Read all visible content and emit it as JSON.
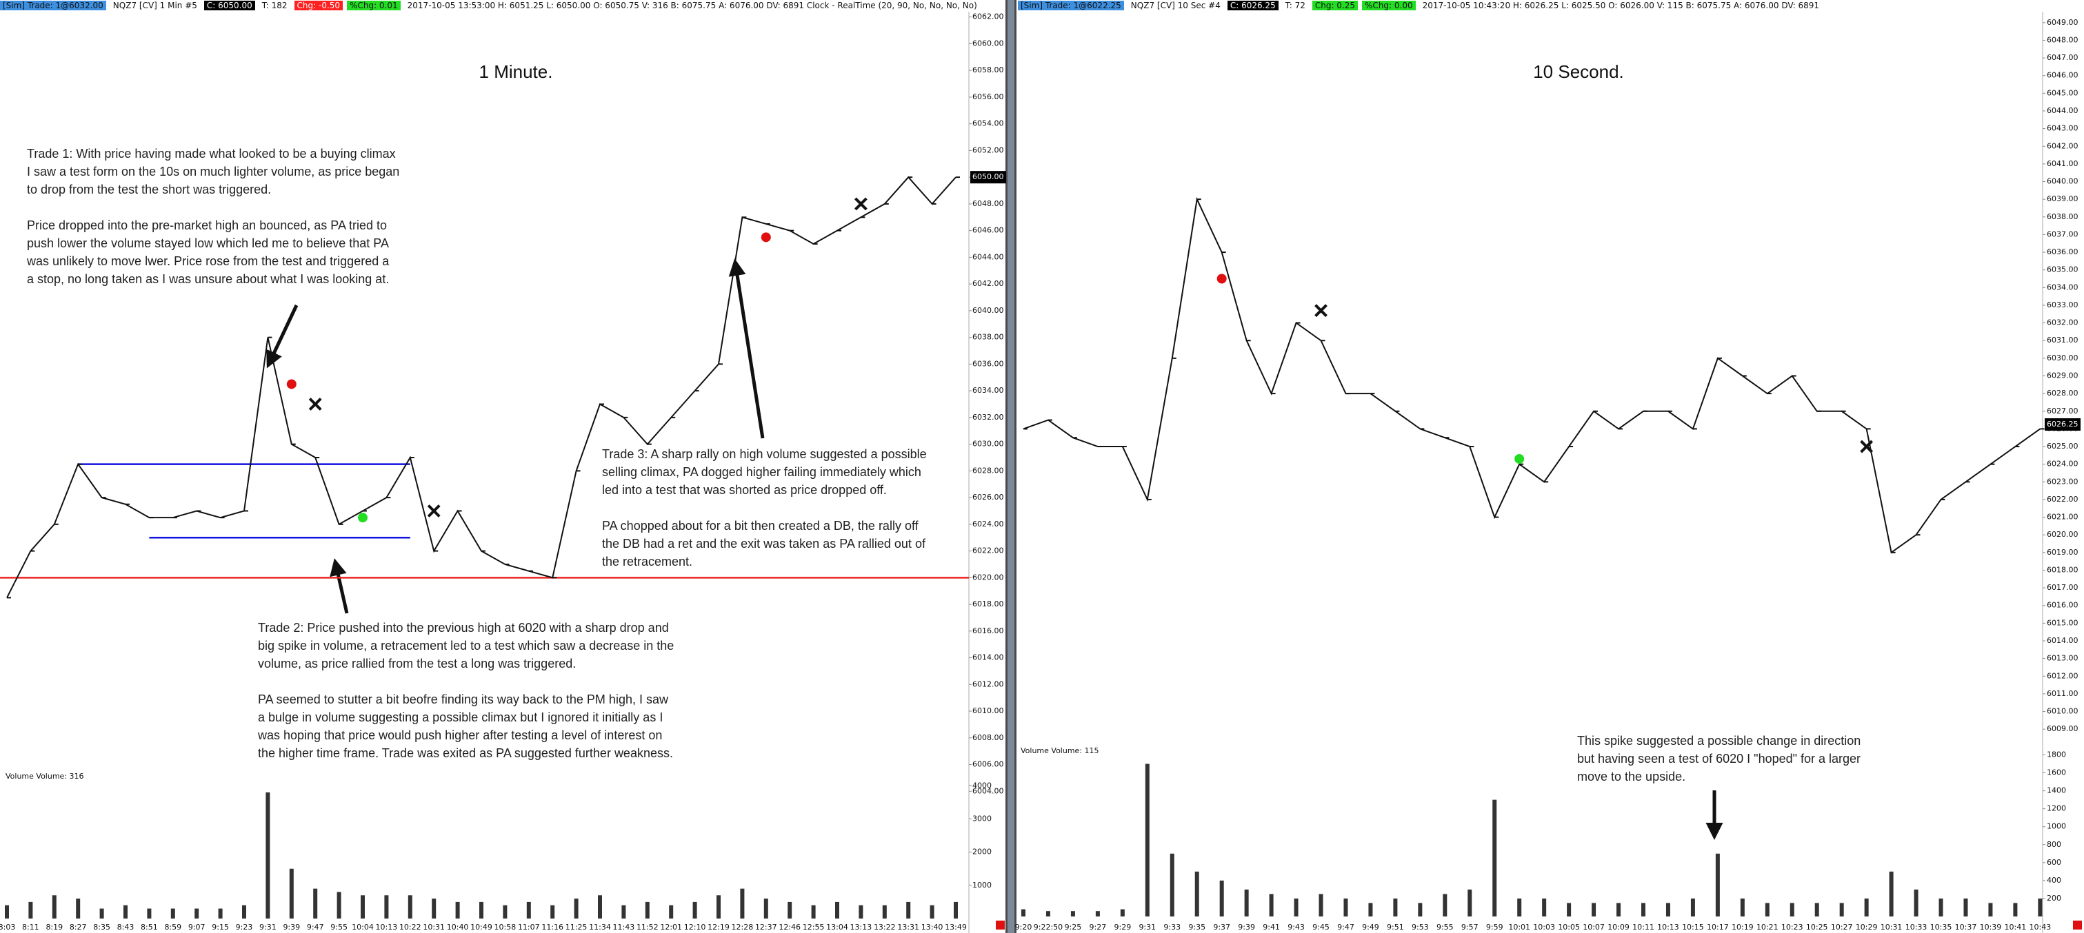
{
  "headers": [
    [
      {
        "text": "[Sim]  Trade: 1@6032.00",
        "bg": "#3d8fe0"
      },
      {
        "text": "NQZ7 [CV]  1 Min  #5"
      },
      {
        "text": "C: 6050.00",
        "bg": "#000000",
        "color": "#ffffff"
      },
      {
        "text": "T: 182"
      },
      {
        "text": "Chg: -0.50",
        "bg": "#ff2020",
        "color": "#ffffff"
      },
      {
        "text": "%Chg: 0.01",
        "bg": "#22dd22"
      },
      {
        "text": "2017-10-05 13:53:00  H: 6051.25  L: 6050.00  O: 6050.75  V: 316  B: 6075.75  A: 6076.00  DV: 6891  Clock - RealTime  (20, 90, No, No, No, No)"
      }
    ],
    [
      {
        "text": "[Sim]  Trade: 1@6022.25",
        "bg": "#3d8fe0"
      },
      {
        "text": "NQZ7 [CV]  10 Sec  #4"
      },
      {
        "text": "C: 6026.25",
        "bg": "#000000",
        "color": "#ffffff"
      },
      {
        "text": "T: 72"
      },
      {
        "text": "Chg: 0.25",
        "bg": "#22dd22"
      },
      {
        "text": "%Chg: 0.00",
        "bg": "#22dd22"
      },
      {
        "text": "2017-10-05 10:43:20  H: 6026.25  L: 6025.50  O: 6026.00  V: 115  B: 6075.75  A: 6076.00  DV: 6891"
      }
    ]
  ],
  "notes": [
    {
      "paragraphs": [
        [
          "Trade 1:  With price having made what looked to be a buying climax",
          "I saw a test form on the 10s on much lighter volume, as price began",
          "to drop from the test the short was triggered."
        ],
        [
          "Price dropped into the pre-market high an bounced, as PA tried to",
          "push lower the volume stayed low which led me to believe that PA",
          "was unlikely to move lwer.  Price rose from the test and triggered a",
          "a stop, no long taken as I was unsure about what I was looking at."
        ]
      ]
    },
    {
      "paragraphs": [
        [
          "Trade 3:  A sharp rally on high volume suggested a possible",
          "selling climax, PA dogged higher failing immediately which",
          "led into a test that was shorted as price dropped off."
        ],
        [
          "PA chopped about for a bit then created a DB, the rally off",
          "the DB had a ret and the exit was taken as PA rallied out of",
          "the retracement."
        ]
      ]
    },
    {
      "paragraphs": [
        [
          "Trade 2:  Price pushed into the previous high at 6020 with a sharp drop and",
          "big spike in volume, a retracement led to a test which saw a decrease in the",
          "volume, as price rallied from the test a long was triggered."
        ],
        [
          "PA seemed to stutter a bit beofre finding its way back to the PM high, I saw",
          "a bulge in volume suggesting a possible climax but I ignored it initially as I",
          "was hoping that price would push higher after testing a level of interest on",
          "the higher time frame.  Trade was exited as PA suggested further weakness."
        ]
      ]
    },
    {
      "paragraphs": [
        [
          "This spike suggested a possible change in direction",
          "but having seen a test of 6020 I \"hoped\" for a larger",
          "move to the upside."
        ]
      ]
    }
  ],
  "chart_data": [
    {
      "type": "line",
      "title": "1 Minute.",
      "color": "#111111",
      "values": [
        6018.5,
        6022,
        6024,
        6028.5,
        6026,
        6025.5,
        6024.5,
        6024.5,
        6025,
        6024.5,
        6025,
        6038,
        6030,
        6029,
        6024,
        6025,
        6026,
        6029,
        6022,
        6025,
        6022,
        6021,
        6020.5,
        6020,
        6028,
        6033,
        6032,
        6030,
        6032,
        6034,
        6036,
        6047,
        6046.5,
        6046,
        6045,
        6046,
        6047,
        6048,
        6050,
        6048,
        6050
      ],
      "ylim": [
        6003.5,
        6062.5
      ],
      "yticks": [
        {
          "value": 6004,
          "label": "6004.00"
        },
        {
          "value": 6006,
          "label": "6006.00"
        },
        {
          "value": 6008,
          "label": "6008.00"
        },
        {
          "value": 6010,
          "label": "6010.00"
        },
        {
          "value": 6012,
          "label": "6012.00"
        },
        {
          "value": 6014,
          "label": "6014.00"
        },
        {
          "value": 6016,
          "label": "6016.00"
        },
        {
          "value": 6018,
          "label": "6018.00"
        },
        {
          "value": 6020,
          "label": "6020.00"
        },
        {
          "value": 6022,
          "label": "6022.00"
        },
        {
          "value": 6024,
          "label": "6024.00"
        },
        {
          "value": 6026,
          "label": "6026.00"
        },
        {
          "value": 6028,
          "label": "6028.00"
        },
        {
          "value": 6030,
          "label": "6030.00"
        },
        {
          "value": 6032,
          "label": "6032.00"
        },
        {
          "value": 6034,
          "label": "6034.00"
        },
        {
          "value": 6036,
          "label": "6036.00"
        },
        {
          "value": 6038,
          "label": "6038.00"
        },
        {
          "value": 6040,
          "label": "6040.00"
        },
        {
          "value": 6042,
          "label": "6042.00"
        },
        {
          "value": 6044,
          "label": "6044.00"
        },
        {
          "value": 6046,
          "label": "6046.00"
        },
        {
          "value": 6048,
          "label": "6048.00"
        },
        {
          "value": 6050,
          "label": "6050.00"
        },
        {
          "value": 6052,
          "label": "6052.00"
        },
        {
          "value": 6054,
          "label": "6054.00"
        },
        {
          "value": 6056,
          "label": "6056.00"
        },
        {
          "value": 6058,
          "label": "6058.00"
        },
        {
          "value": 6060,
          "label": "6060.00"
        },
        {
          "value": 6062,
          "label": "6062.00"
        }
      ],
      "last": {
        "value": 6050,
        "label": "6050.00"
      },
      "levels": [
        {
          "value": 6028.5,
          "color": "#1010e0",
          "span": [
            3,
            17
          ]
        },
        {
          "value": 6023,
          "color": "#1010e0",
          "span": [
            6,
            17
          ]
        },
        {
          "value": 6020,
          "color": "#ee2222"
        }
      ],
      "markers": [
        {
          "x": 12,
          "y": 6034.5,
          "shape": "dot",
          "color": "#e01010"
        },
        {
          "x": 13,
          "y": 6033,
          "shape": "cross",
          "color": "#111111"
        },
        {
          "x": 15,
          "y": 6024.5,
          "shape": "dot",
          "color": "#22dd22"
        },
        {
          "x": 18,
          "y": 6025,
          "shape": "cross",
          "color": "#111111"
        },
        {
          "x": 32,
          "y": 6045.5,
          "shape": "dot",
          "color": "#e01010"
        },
        {
          "x": 36,
          "y": 6048,
          "shape": "cross",
          "color": "#111111"
        }
      ]
    },
    {
      "type": "bar",
      "title": "Volume  Volume: 316",
      "color": "#333333",
      "categories": [
        "8:03",
        "8:11",
        "8:19",
        "8:27",
        "8:35",
        "8:43",
        "8:51",
        "8:59",
        "9:07",
        "9:15",
        "9:23",
        "9:31",
        "9:39",
        "9:47",
        "9:55",
        "10:04",
        "10:13",
        "10:22",
        "10:31",
        "10:40",
        "10:49",
        "10:58",
        "11:07",
        "11:16",
        "11:25",
        "11:34",
        "11:43",
        "11:52",
        "12:01",
        "12:10",
        "12:19",
        "12:28",
        "12:37",
        "12:46",
        "12:55",
        "13:04",
        "13:13",
        "13:22",
        "13:31",
        "13:40",
        "13:49"
      ],
      "values": [
        400,
        500,
        700,
        600,
        300,
        400,
        300,
        300,
        300,
        300,
        400,
        3800,
        1500,
        900,
        800,
        700,
        700,
        700,
        600,
        500,
        500,
        400,
        500,
        400,
        600,
        700,
        400,
        500,
        400,
        500,
        700,
        900,
        600,
        500,
        400,
        500,
        400,
        400,
        500,
        400,
        500
      ],
      "ylim": [
        0,
        4400
      ],
      "yticks": [
        1000,
        2000,
        3000,
        4000
      ]
    },
    {
      "type": "line",
      "title": "10 Second.",
      "color": "#111111",
      "values": [
        6026,
        6026.5,
        6025.5,
        6025,
        6025,
        6022,
        6030,
        6039,
        6036,
        6031,
        6028,
        6032,
        6031,
        6028,
        6028,
        6027,
        6026,
        6025.5,
        6025,
        6021,
        6024,
        6023,
        6025,
        6027,
        6026,
        6027,
        6027,
        6026,
        6030,
        6029,
        6028,
        6029,
        6027,
        6027,
        6026,
        6019,
        6020,
        6022,
        6023,
        6024,
        6025,
        6026
      ],
      "ylim": [
        6008.5,
        6049.5
      ],
      "yticks": [
        {
          "value": 6009,
          "label": "6009.00"
        },
        {
          "value": 6010,
          "label": "6010.00"
        },
        {
          "value": 6011,
          "label": "6011.00"
        },
        {
          "value": 6012,
          "label": "6012.00"
        },
        {
          "value": 6013,
          "label": "6013.00"
        },
        {
          "value": 6014,
          "label": "6014.00"
        },
        {
          "value": 6015,
          "label": "6015.00"
        },
        {
          "value": 6016,
          "label": "6016.00"
        },
        {
          "value": 6017,
          "label": "6017.00"
        },
        {
          "value": 6018,
          "label": "6018.00"
        },
        {
          "value": 6019,
          "label": "6019.00"
        },
        {
          "value": 6020,
          "label": "6020.00"
        },
        {
          "value": 6021,
          "label": "6021.00"
        },
        {
          "value": 6022,
          "label": "6022.00"
        },
        {
          "value": 6023,
          "label": "6023.00"
        },
        {
          "value": 6024,
          "label": "6024.00"
        },
        {
          "value": 6025,
          "label": "6025.00"
        },
        {
          "value": 6026,
          "label": "6026.00"
        },
        {
          "value": 6027,
          "label": "6027.00"
        },
        {
          "value": 6028,
          "label": "6028.00"
        },
        {
          "value": 6029,
          "label": "6029.00"
        },
        {
          "value": 6030,
          "label": "6030.00"
        },
        {
          "value": 6031,
          "label": "6031.00"
        },
        {
          "value": 6032,
          "label": "6032.00"
        },
        {
          "value": 6033,
          "label": "6033.00"
        },
        {
          "value": 6034,
          "label": "6034.00"
        },
        {
          "value": 6035,
          "label": "6035.00"
        },
        {
          "value": 6036,
          "label": "6036.00"
        },
        {
          "value": 6037,
          "label": "6037.00"
        },
        {
          "value": 6038,
          "label": "6038.00"
        },
        {
          "value": 6039,
          "label": "6039.00"
        },
        {
          "value": 6040,
          "label": "6040.00"
        },
        {
          "value": 6041,
          "label": "6041.00"
        },
        {
          "value": 6042,
          "label": "6042.00"
        },
        {
          "value": 6043,
          "label": "6043.00"
        },
        {
          "value": 6044,
          "label": "6044.00"
        },
        {
          "value": 6045,
          "label": "6045.00"
        },
        {
          "value": 6046,
          "label": "6046.00"
        },
        {
          "value": 6047,
          "label": "6047.00"
        },
        {
          "value": 6048,
          "label": "6048.00"
        },
        {
          "value": 6049,
          "label": "6049.00"
        }
      ],
      "last": {
        "value": 6026.25,
        "label": "6026.25"
      },
      "markers": [
        {
          "x": 8,
          "y": 6034.5,
          "shape": "dot",
          "color": "#e01010"
        },
        {
          "x": 12,
          "y": 6032.7,
          "shape": "cross",
          "color": "#111111"
        },
        {
          "x": 20,
          "y": 6024.3,
          "shape": "dot",
          "color": "#22dd22"
        },
        {
          "x": 34,
          "y": 6025,
          "shape": "cross",
          "color": "#111111"
        }
      ]
    },
    {
      "type": "bar",
      "title": "Volume  Volume: 115",
      "color": "#333333",
      "categories": [
        "9:20",
        "9:22:50",
        "9:25",
        "9:27",
        "9:29",
        "9:31",
        "9:33",
        "9:35",
        "9:37",
        "9:39",
        "9:41",
        "9:43",
        "9:45",
        "9:47",
        "9:49",
        "9:51",
        "9:53",
        "9:55",
        "9:57",
        "9:59",
        "10:01",
        "10:03",
        "10:05",
        "10:07",
        "10:09",
        "10:11",
        "10:13",
        "10:15",
        "10:17",
        "10:19",
        "10:21",
        "10:23",
        "10:25",
        "10:27",
        "10:29",
        "10:31",
        "10:33",
        "10:35",
        "10:37",
        "10:39",
        "10:41",
        "10:43"
      ],
      "values": [
        80,
        60,
        60,
        60,
        80,
        1700,
        700,
        500,
        400,
        300,
        250,
        200,
        250,
        200,
        150,
        200,
        150,
        250,
        300,
        1300,
        200,
        200,
        150,
        150,
        150,
        150,
        150,
        200,
        700,
        200,
        150,
        150,
        150,
        150,
        200,
        500,
        300,
        200,
        200,
        150,
        150,
        200
      ],
      "ylim": [
        0,
        1850
      ],
      "yticks": [
        200,
        400,
        600,
        800,
        1000,
        1200,
        1400,
        1600,
        1800
      ]
    }
  ]
}
